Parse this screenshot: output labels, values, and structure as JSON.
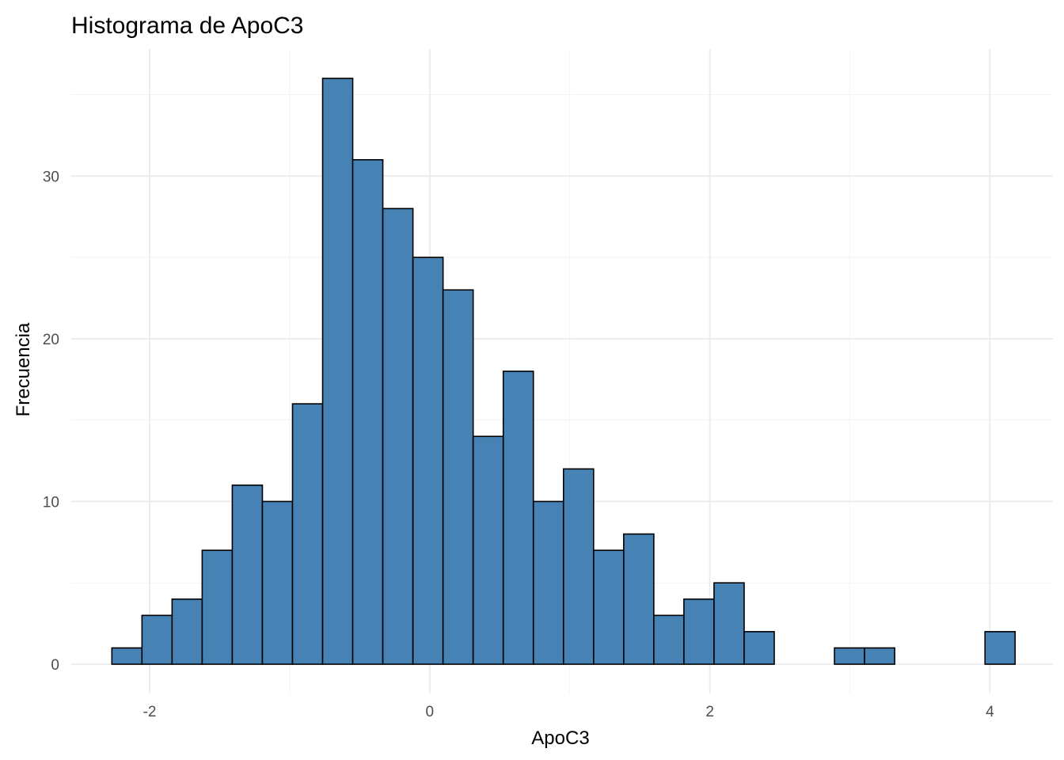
{
  "chart_data": {
    "type": "bar",
    "title": "Histograma de ApoC3",
    "xlabel": "ApoC3",
    "ylabel": "Frecuencia",
    "bar_color": "#4682b4",
    "bar_outline": "#000000",
    "grid": true,
    "xlim": [
      -2.56,
      4.45
    ],
    "ylim": [
      -1.8,
      37.8
    ],
    "x_ticks": [
      -2,
      0,
      2,
      4
    ],
    "x_tick_labels": [
      "-2",
      "0",
      "2",
      "4"
    ],
    "y_ticks": [
      0,
      10,
      20,
      30
    ],
    "y_tick_labels": [
      "0",
      "10",
      "20",
      "30"
    ],
    "bin_width": 0.215,
    "bins": [
      {
        "x0": -2.27,
        "x1": -2.055,
        "count": 1
      },
      {
        "x0": -2.055,
        "x1": -1.84,
        "count": 3
      },
      {
        "x0": -1.84,
        "x1": -1.625,
        "count": 4
      },
      {
        "x0": -1.625,
        "x1": -1.41,
        "count": 7
      },
      {
        "x0": -1.41,
        "x1": -1.195,
        "count": 11
      },
      {
        "x0": -1.195,
        "x1": -0.98,
        "count": 10
      },
      {
        "x0": -0.98,
        "x1": -0.765,
        "count": 16
      },
      {
        "x0": -0.765,
        "x1": -0.55,
        "count": 36
      },
      {
        "x0": -0.55,
        "x1": -0.335,
        "count": 31
      },
      {
        "x0": -0.335,
        "x1": -0.12,
        "count": 28
      },
      {
        "x0": -0.12,
        "x1": 0.095,
        "count": 25
      },
      {
        "x0": 0.095,
        "x1": 0.31,
        "count": 23
      },
      {
        "x0": 0.31,
        "x1": 0.525,
        "count": 14
      },
      {
        "x0": 0.525,
        "x1": 0.74,
        "count": 18
      },
      {
        "x0": 0.74,
        "x1": 0.955,
        "count": 10
      },
      {
        "x0": 0.955,
        "x1": 1.17,
        "count": 12
      },
      {
        "x0": 1.17,
        "x1": 1.385,
        "count": 7
      },
      {
        "x0": 1.385,
        "x1": 1.6,
        "count": 8
      },
      {
        "x0": 1.6,
        "x1": 1.815,
        "count": 3
      },
      {
        "x0": 1.815,
        "x1": 2.03,
        "count": 4
      },
      {
        "x0": 2.03,
        "x1": 2.245,
        "count": 5
      },
      {
        "x0": 2.245,
        "x1": 2.46,
        "count": 2
      },
      {
        "x0": 2.46,
        "x1": 2.675,
        "count": 0
      },
      {
        "x0": 2.675,
        "x1": 2.89,
        "count": 0
      },
      {
        "x0": 2.89,
        "x1": 3.105,
        "count": 1
      },
      {
        "x0": 3.105,
        "x1": 3.32,
        "count": 1
      },
      {
        "x0": 3.32,
        "x1": 3.535,
        "count": 0
      },
      {
        "x0": 3.535,
        "x1": 3.75,
        "count": 0
      },
      {
        "x0": 3.75,
        "x1": 3.965,
        "count": 0
      },
      {
        "x0": 3.965,
        "x1": 4.18,
        "count": 2
      }
    ]
  }
}
